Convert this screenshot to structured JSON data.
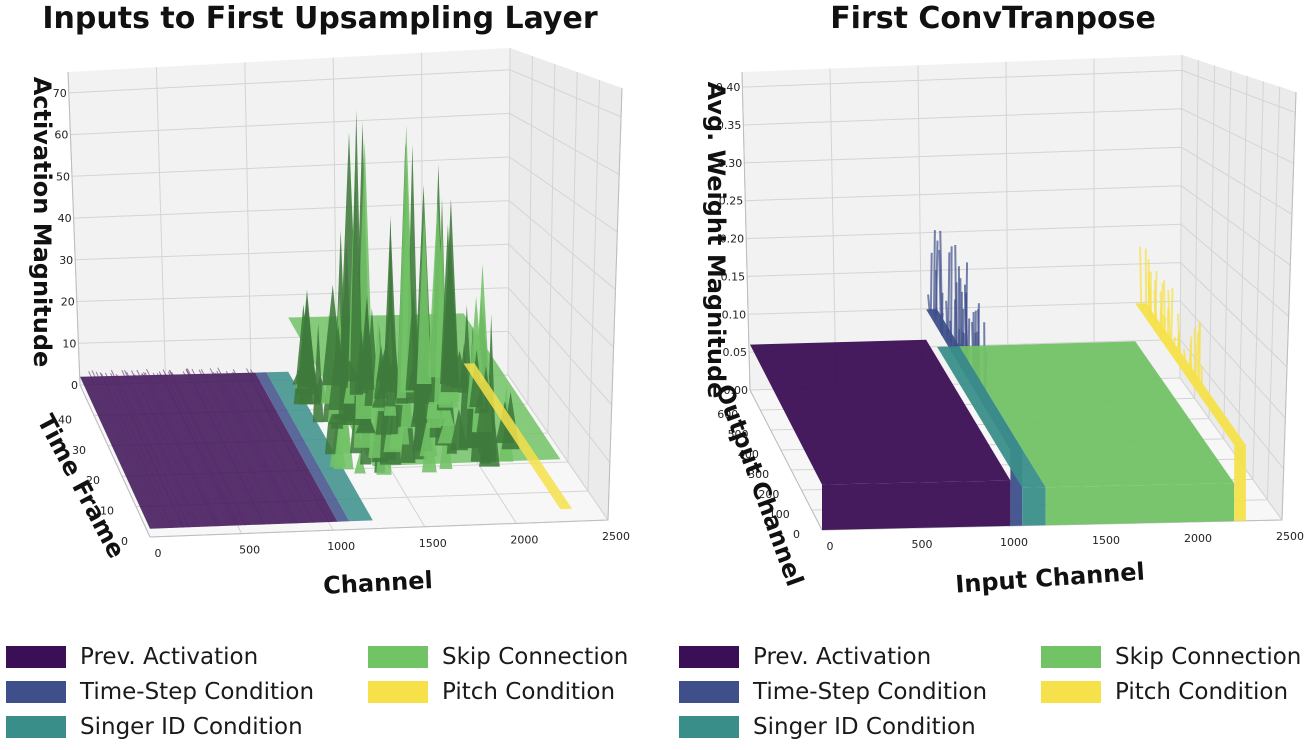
{
  "colors": {
    "prev_activation": "#3b0f55",
    "time_step": "#3e4f8a",
    "singer_id": "#3a8e8a",
    "skip": "#72c266",
    "pitch": "#f6e14a",
    "skip_dark": "#3f7a3b"
  },
  "legend": {
    "items": [
      "Prev. Activation",
      "Time-Step Condition",
      "Singer ID Condition",
      "Skip Connection",
      "Pitch Condition"
    ]
  },
  "chart_data": [
    {
      "type": "surface3d",
      "title": "Inputs to First Upsampling Layer",
      "xlabel": "Channel",
      "ylabel": "Time Frame",
      "zlabel": "Activation Magnitude",
      "xlim": [
        0,
        2500
      ],
      "ylim": [
        0,
        50
      ],
      "zlim": [
        0,
        75
      ],
      "x_ticks": [
        "0",
        "500",
        "1000",
        "1500",
        "2000",
        "2500"
      ],
      "y_ticks": [
        "0",
        "10",
        "20",
        "30",
        "40"
      ],
      "z_ticks": [
        "0",
        "10",
        "20",
        "30",
        "40",
        "50",
        "60",
        "70"
      ],
      "grid": true,
      "legend_position": "bottom",
      "series": [
        {
          "name": "Prev. Activation",
          "channel_range": [
            0,
            1024
          ],
          "approx_magnitude": 2
        },
        {
          "name": "Time-Step Condition",
          "channel_range": [
            1024,
            1088
          ],
          "approx_magnitude": 2
        },
        {
          "name": "Singer ID Condition",
          "channel_range": [
            1088,
            1216
          ],
          "approx_magnitude": 2
        },
        {
          "name": "Skip Connection",
          "channel_range": [
            1216,
            2240
          ],
          "approx_magnitude": 15,
          "peak_magnitude": 72
        },
        {
          "name": "Pitch Condition",
          "channel_range": [
            2240,
            2304
          ],
          "approx_magnitude": 3
        }
      ]
    },
    {
      "type": "surface3d",
      "title": "First ConvTranpose",
      "xlabel": "Input Channel",
      "ylabel": "Output Channel",
      "zlabel": "Avg. Weight Magnitude",
      "xlim": [
        0,
        2500
      ],
      "ylim": [
        0,
        700
      ],
      "zlim": [
        0,
        0.42
      ],
      "x_ticks": [
        "0",
        "500",
        "1000",
        "1500",
        "2000",
        "2500"
      ],
      "y_ticks": [
        "0",
        "100",
        "200",
        "300",
        "400",
        "500",
        "600"
      ],
      "z_ticks": [
        "0.00",
        "0.05",
        "0.10",
        "0.15",
        "0.20",
        "0.25",
        "0.30",
        "0.35",
        "0.40"
      ],
      "grid": true,
      "legend_position": "bottom",
      "series": [
        {
          "name": "Prev. Activation",
          "channel_range": [
            0,
            1024
          ],
          "approx_magnitude": 0.06
        },
        {
          "name": "Time-Step Condition",
          "channel_range": [
            1024,
            1088
          ],
          "approx_magnitude": 0.1,
          "peak_magnitude": 0.24
        },
        {
          "name": "Singer ID Condition",
          "channel_range": [
            1088,
            1216
          ],
          "approx_magnitude": 0.05
        },
        {
          "name": "Skip Connection",
          "channel_range": [
            1216,
            2240
          ],
          "approx_magnitude": 0.05
        },
        {
          "name": "Pitch Condition",
          "channel_range": [
            2240,
            2304
          ],
          "approx_magnitude": 0.1,
          "peak_magnitude": 0.18
        }
      ]
    }
  ]
}
